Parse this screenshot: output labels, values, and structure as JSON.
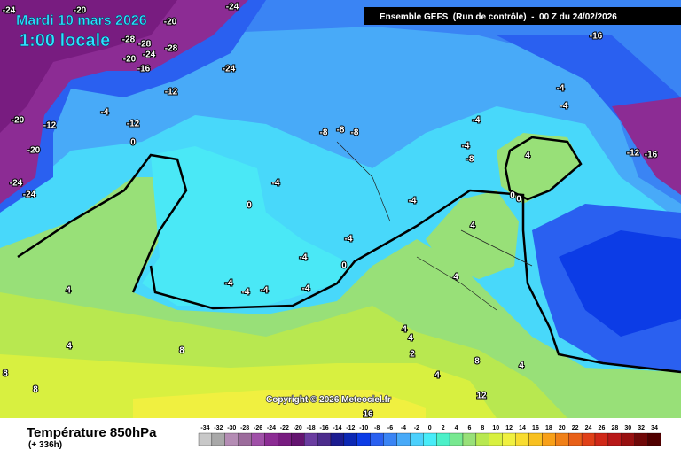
{
  "header": {
    "date": "Mardi 10 mars 2026",
    "time": "1:00 locale",
    "model": "Ensemble GEFS  (Run de contrôle)  -  00 Z du 24/02/2026"
  },
  "footer": {
    "title": "Température 850hPa",
    "lead": "(+ 336h)",
    "copyright": "Copyright © 2026 Meteociel.fr"
  },
  "legend": {
    "ticks": [
      -34,
      -32,
      -30,
      -28,
      -26,
      -24,
      -22,
      -20,
      -18,
      -16,
      -14,
      -12,
      -10,
      -8,
      -6,
      -4,
      -2,
      0,
      2,
      4,
      6,
      8,
      10,
      12,
      14,
      16,
      18,
      20,
      22,
      24,
      26,
      28,
      30,
      32,
      34
    ],
    "colors": [
      "#c8c8c8",
      "#a8a8a8",
      "#b48cb4",
      "#9c6c9c",
      "#a050a8",
      "#8c2c94",
      "#781c80",
      "#641470",
      "#6a3ca0",
      "#4c2c8c",
      "#1c1c90",
      "#0c28b4",
      "#0c3ce6",
      "#2a60f0",
      "#3a84f4",
      "#48aaf8",
      "#4cd0fc",
      "#48ecf8",
      "#4cf0c8",
      "#78e890",
      "#98e078",
      "#b8e850",
      "#d8f040",
      "#f0f040",
      "#f8dc30",
      "#f8c020",
      "#f8a018",
      "#f08018",
      "#e86018",
      "#e04018",
      "#d02818",
      "#b81818",
      "#981010",
      "#700808",
      "#500000"
    ]
  },
  "contour_labels": [
    -24,
    -20,
    -20,
    -24,
    -28,
    -28,
    -28,
    -24,
    -20,
    -16,
    -24,
    -12,
    -4,
    -12,
    -12,
    -20,
    -20,
    0,
    -24,
    -24,
    -8,
    -8,
    -8,
    -4,
    0,
    -4,
    -4,
    -4,
    0,
    -4,
    -4,
    -4,
    -4,
    4,
    4,
    8,
    8,
    4,
    4,
    2,
    -16,
    -4,
    -4,
    -4,
    -4,
    -8,
    -12,
    -16,
    4,
    0,
    0,
    4,
    4,
    4,
    4,
    8,
    12,
    16,
    8
  ]
}
